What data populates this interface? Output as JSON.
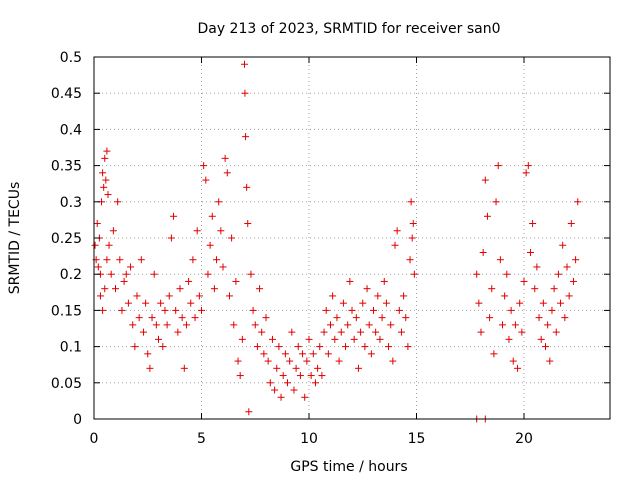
{
  "chart_data": {
    "type": "scatter",
    "title": "Day 213 of 2023, SRMTID for receiver san0",
    "xlabel": "GPS time / hours",
    "ylabel": "SRMTID / TECUs",
    "xlim": [
      0,
      24
    ],
    "ylim": [
      0,
      0.5
    ],
    "x_ticks": [
      0,
      5,
      10,
      15,
      20
    ],
    "x_tick_labels": [
      "0",
      "5",
      "10",
      "15",
      "20"
    ],
    "y_ticks": [
      0,
      0.05,
      0.1,
      0.15,
      0.2,
      0.25,
      0.3,
      0.35,
      0.4,
      0.45,
      0.5
    ],
    "y_tick_labels": [
      "0",
      "0.05",
      "0.1",
      "0.15",
      "0.2",
      "0.25",
      "0.3",
      "0.35",
      "0.4",
      "0.45",
      "0.5"
    ],
    "grid": true,
    "marker": "+",
    "marker_color": "#e00000",
    "series": [
      {
        "name": "SRMTID",
        "points": [
          [
            0.05,
            0.24
          ],
          [
            0.1,
            0.22
          ],
          [
            0.15,
            0.27
          ],
          [
            0.2,
            0.21
          ],
          [
            0.25,
            0.25
          ],
          [
            0.3,
            0.2
          ],
          [
            0.35,
            0.3
          ],
          [
            0.4,
            0.34
          ],
          [
            0.45,
            0.32
          ],
          [
            0.5,
            0.36
          ],
          [
            0.55,
            0.33
          ],
          [
            0.6,
            0.37
          ],
          [
            0.65,
            0.31
          ],
          [
            0.3,
            0.17
          ],
          [
            0.4,
            0.15
          ],
          [
            0.5,
            0.18
          ],
          [
            0.6,
            0.22
          ],
          [
            0.7,
            0.24
          ],
          [
            0.8,
            0.2
          ],
          [
            0.9,
            0.26
          ],
          [
            1.0,
            0.18
          ],
          [
            1.1,
            0.3
          ],
          [
            1.2,
            0.22
          ],
          [
            1.3,
            0.15
          ],
          [
            1.4,
            0.19
          ],
          [
            1.5,
            0.2
          ],
          [
            1.6,
            0.16
          ],
          [
            1.7,
            0.21
          ],
          [
            1.8,
            0.13
          ],
          [
            1.9,
            0.1
          ],
          [
            2.0,
            0.17
          ],
          [
            2.1,
            0.14
          ],
          [
            2.2,
            0.22
          ],
          [
            2.3,
            0.12
          ],
          [
            2.4,
            0.16
          ],
          [
            2.5,
            0.09
          ],
          [
            2.6,
            0.07
          ],
          [
            2.7,
            0.14
          ],
          [
            2.8,
            0.2
          ],
          [
            2.9,
            0.13
          ],
          [
            3.0,
            0.11
          ],
          [
            3.1,
            0.16
          ],
          [
            3.2,
            0.1
          ],
          [
            3.3,
            0.15
          ],
          [
            3.4,
            0.13
          ],
          [
            3.5,
            0.17
          ],
          [
            3.6,
            0.25
          ],
          [
            3.7,
            0.28
          ],
          [
            3.8,
            0.15
          ],
          [
            3.9,
            0.12
          ],
          [
            4.0,
            0.18
          ],
          [
            4.1,
            0.14
          ],
          [
            4.2,
            0.07
          ],
          [
            4.3,
            0.13
          ],
          [
            4.4,
            0.19
          ],
          [
            4.5,
            0.16
          ],
          [
            4.6,
            0.22
          ],
          [
            4.7,
            0.14
          ],
          [
            4.8,
            0.26
          ],
          [
            4.9,
            0.17
          ],
          [
            5.0,
            0.15
          ],
          [
            5.1,
            0.35
          ],
          [
            5.2,
            0.33
          ],
          [
            5.3,
            0.2
          ],
          [
            5.4,
            0.24
          ],
          [
            5.5,
            0.28
          ],
          [
            5.6,
            0.18
          ],
          [
            5.7,
            0.22
          ],
          [
            5.8,
            0.3
          ],
          [
            5.9,
            0.26
          ],
          [
            6.0,
            0.21
          ],
          [
            6.1,
            0.36
          ],
          [
            6.2,
            0.34
          ],
          [
            6.3,
            0.17
          ],
          [
            6.4,
            0.25
          ],
          [
            6.5,
            0.13
          ],
          [
            6.6,
            0.19
          ],
          [
            6.7,
            0.08
          ],
          [
            6.8,
            0.06
          ],
          [
            6.9,
            0.11
          ],
          [
            7.0,
            0.49
          ],
          [
            7.02,
            0.45
          ],
          [
            7.05,
            0.39
          ],
          [
            7.1,
            0.32
          ],
          [
            7.15,
            0.27
          ],
          [
            7.2,
            0.01
          ],
          [
            7.3,
            0.2
          ],
          [
            7.4,
            0.15
          ],
          [
            7.5,
            0.13
          ],
          [
            7.6,
            0.1
          ],
          [
            7.7,
            0.18
          ],
          [
            7.8,
            0.12
          ],
          [
            7.9,
            0.09
          ],
          [
            8.0,
            0.14
          ],
          [
            8.1,
            0.08
          ],
          [
            8.2,
            0.05
          ],
          [
            8.3,
            0.11
          ],
          [
            8.4,
            0.04
          ],
          [
            8.5,
            0.07
          ],
          [
            8.6,
            0.1
          ],
          [
            8.7,
            0.03
          ],
          [
            8.8,
            0.06
          ],
          [
            8.9,
            0.09
          ],
          [
            9.0,
            0.05
          ],
          [
            9.1,
            0.08
          ],
          [
            9.2,
            0.12
          ],
          [
            9.3,
            0.04
          ],
          [
            9.4,
            0.07
          ],
          [
            9.5,
            0.1
          ],
          [
            9.6,
            0.06
          ],
          [
            9.7,
            0.09
          ],
          [
            9.8,
            0.03
          ],
          [
            9.9,
            0.08
          ],
          [
            10.0,
            0.11
          ],
          [
            10.1,
            0.06
          ],
          [
            10.2,
            0.09
          ],
          [
            10.3,
            0.05
          ],
          [
            10.4,
            0.07
          ],
          [
            10.5,
            0.1
          ],
          [
            10.6,
            0.06
          ],
          [
            10.7,
            0.12
          ],
          [
            10.8,
            0.15
          ],
          [
            10.9,
            0.09
          ],
          [
            11.0,
            0.13
          ],
          [
            11.1,
            0.17
          ],
          [
            11.2,
            0.11
          ],
          [
            11.3,
            0.14
          ],
          [
            11.4,
            0.08
          ],
          [
            11.5,
            0.12
          ],
          [
            11.6,
            0.16
          ],
          [
            11.7,
            0.1
          ],
          [
            11.8,
            0.13
          ],
          [
            11.9,
            0.19
          ],
          [
            12.0,
            0.15
          ],
          [
            12.1,
            0.11
          ],
          [
            12.2,
            0.14
          ],
          [
            12.3,
            0.07
          ],
          [
            12.4,
            0.12
          ],
          [
            12.5,
            0.16
          ],
          [
            12.6,
            0.1
          ],
          [
            12.7,
            0.18
          ],
          [
            12.8,
            0.13
          ],
          [
            12.9,
            0.09
          ],
          [
            13.0,
            0.15
          ],
          [
            13.1,
            0.12
          ],
          [
            13.2,
            0.17
          ],
          [
            13.3,
            0.11
          ],
          [
            13.4,
            0.14
          ],
          [
            13.5,
            0.19
          ],
          [
            13.6,
            0.16
          ],
          [
            13.7,
            0.1
          ],
          [
            13.8,
            0.13
          ],
          [
            13.9,
            0.08
          ],
          [
            14.0,
            0.24
          ],
          [
            14.1,
            0.26
          ],
          [
            14.2,
            0.15
          ],
          [
            14.3,
            0.12
          ],
          [
            14.4,
            0.17
          ],
          [
            14.5,
            0.14
          ],
          [
            14.6,
            0.1
          ],
          [
            14.7,
            0.22
          ],
          [
            14.75,
            0.3
          ],
          [
            14.8,
            0.25
          ],
          [
            14.85,
            0.27
          ],
          [
            14.9,
            0.2
          ],
          [
            17.8,
            0.2
          ],
          [
            17.9,
            0.16
          ],
          [
            18.0,
            0.12
          ],
          [
            18.1,
            0.23
          ],
          [
            18.2,
            0.33
          ],
          [
            18.3,
            0.28
          ],
          [
            18.4,
            0.14
          ],
          [
            18.5,
            0.18
          ],
          [
            18.6,
            0.09
          ],
          [
            18.7,
            0.3
          ],
          [
            18.8,
            0.35
          ],
          [
            18.9,
            0.22
          ],
          [
            19.0,
            0.13
          ],
          [
            19.1,
            0.17
          ],
          [
            19.2,
            0.2
          ],
          [
            19.3,
            0.11
          ],
          [
            19.4,
            0.15
          ],
          [
            19.5,
            0.08
          ],
          [
            19.6,
            0.13
          ],
          [
            19.7,
            0.07
          ],
          [
            19.8,
            0.16
          ],
          [
            19.9,
            0.12
          ],
          [
            20.0,
            0.19
          ],
          [
            20.1,
            0.34
          ],
          [
            20.2,
            0.35
          ],
          [
            20.3,
            0.23
          ],
          [
            20.4,
            0.27
          ],
          [
            20.5,
            0.18
          ],
          [
            20.6,
            0.21
          ],
          [
            20.7,
            0.14
          ],
          [
            20.8,
            0.11
          ],
          [
            20.9,
            0.16
          ],
          [
            21.0,
            0.1
          ],
          [
            21.1,
            0.13
          ],
          [
            21.2,
            0.08
          ],
          [
            21.3,
            0.15
          ],
          [
            21.4,
            0.18
          ],
          [
            21.5,
            0.12
          ],
          [
            21.6,
            0.2
          ],
          [
            21.7,
            0.16
          ],
          [
            21.8,
            0.24
          ],
          [
            21.9,
            0.14
          ],
          [
            22.0,
            0.21
          ],
          [
            22.1,
            0.17
          ],
          [
            22.2,
            0.27
          ],
          [
            22.3,
            0.19
          ],
          [
            22.4,
            0.22
          ],
          [
            22.5,
            0.3
          ]
        ]
      },
      {
        "name": "marks-at-zero",
        "points": [
          [
            17.8,
            0.0
          ],
          [
            18.2,
            0.0
          ]
        ]
      }
    ]
  }
}
